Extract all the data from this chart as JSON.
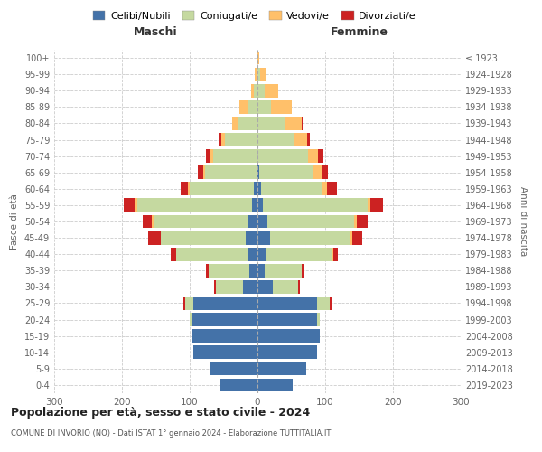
{
  "age_groups": [
    "0-4",
    "5-9",
    "10-14",
    "15-19",
    "20-24",
    "25-29",
    "30-34",
    "35-39",
    "40-44",
    "45-49",
    "50-54",
    "55-59",
    "60-64",
    "65-69",
    "70-74",
    "75-79",
    "80-84",
    "85-89",
    "90-94",
    "95-99",
    "100+"
  ],
  "birth_years": [
    "2019-2023",
    "2014-2018",
    "2009-2013",
    "2004-2008",
    "1999-2003",
    "1994-1998",
    "1989-1993",
    "1984-1988",
    "1979-1983",
    "1974-1978",
    "1969-1973",
    "1964-1968",
    "1959-1963",
    "1954-1958",
    "1949-1953",
    "1944-1948",
    "1939-1943",
    "1934-1938",
    "1929-1933",
    "1924-1928",
    "≤ 1923"
  ],
  "males": {
    "celibi": [
      55,
      70,
      95,
      98,
      98,
      95,
      22,
      12,
      15,
      18,
      14,
      8,
      5,
      2,
      0,
      0,
      0,
      0,
      0,
      0,
      0
    ],
    "coniugati": [
      0,
      0,
      0,
      0,
      2,
      12,
      40,
      60,
      105,
      125,
      140,
      170,
      95,
      75,
      65,
      48,
      30,
      15,
      5,
      2,
      0
    ],
    "vedovi": [
      0,
      0,
      0,
      0,
      0,
      0,
      0,
      0,
      0,
      0,
      2,
      2,
      3,
      3,
      5,
      5,
      8,
      12,
      5,
      2,
      0
    ],
    "divorziati": [
      0,
      0,
      0,
      0,
      0,
      3,
      2,
      4,
      8,
      18,
      14,
      18,
      10,
      8,
      6,
      4,
      0,
      0,
      0,
      0,
      0
    ]
  },
  "females": {
    "nubili": [
      52,
      72,
      88,
      92,
      88,
      88,
      22,
      10,
      12,
      18,
      14,
      8,
      5,
      2,
      0,
      0,
      0,
      0,
      0,
      0,
      0
    ],
    "coniugate": [
      0,
      0,
      0,
      0,
      4,
      18,
      38,
      55,
      98,
      118,
      128,
      155,
      90,
      80,
      75,
      55,
      40,
      20,
      10,
      4,
      0
    ],
    "vedove": [
      0,
      0,
      0,
      0,
      0,
      0,
      0,
      0,
      2,
      4,
      4,
      4,
      8,
      12,
      14,
      18,
      25,
      30,
      20,
      8,
      2
    ],
    "divorziate": [
      0,
      0,
      0,
      0,
      0,
      3,
      2,
      4,
      6,
      14,
      16,
      18,
      14,
      10,
      8,
      4,
      2,
      0,
      0,
      0,
      0
    ]
  },
  "colors": {
    "celibi_nubili": "#4472a8",
    "coniugati": "#c5d9a0",
    "vedovi": "#ffc06a",
    "divorziati": "#cc2222"
  },
  "xlim": 300,
  "title": "Popolazione per età, sesso e stato civile - 2024",
  "subtitle": "COMUNE DI INVORIO (NO) - Dati ISTAT 1° gennaio 2024 - Elaborazione TUTTITALIA.IT",
  "xlabel_left": "Maschi",
  "xlabel_right": "Femmine",
  "ylabel_left": "Fasce di età",
  "ylabel_right": "Anni di nascita",
  "legend_labels": [
    "Celibi/Nubili",
    "Coniugati/e",
    "Vedovi/e",
    "Divorziati/e"
  ],
  "background_color": "#ffffff",
  "grid_color": "#cccccc"
}
